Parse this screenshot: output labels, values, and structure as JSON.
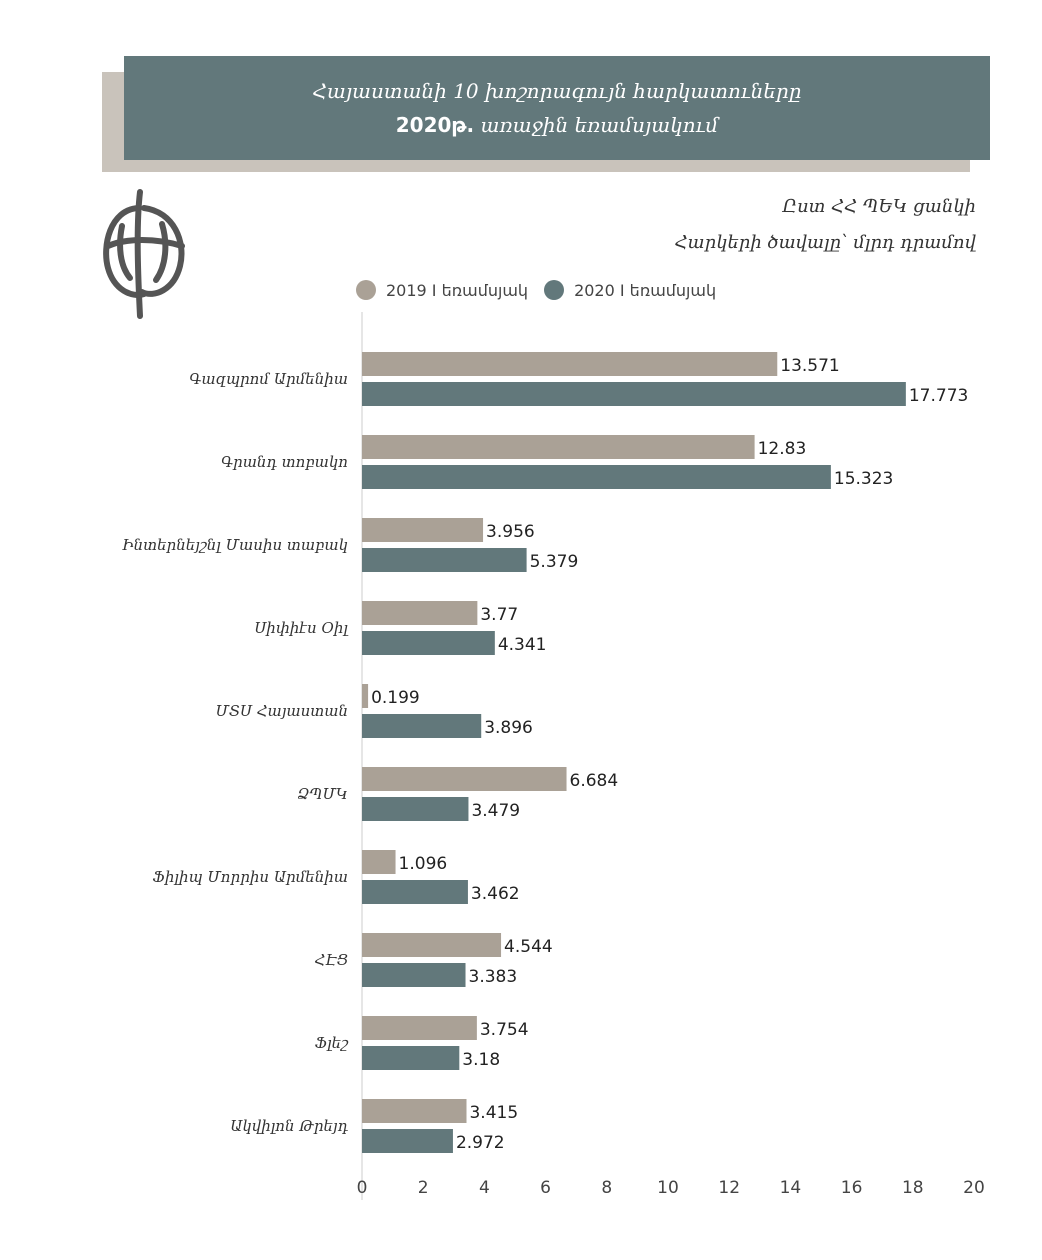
{
  "header": {
    "title_line1": "Հայաստանի 10 խոշորագույն հարկատուները",
    "title_line2_bold": "2020թ.",
    "title_line2_rest": "առաջին եռամսյակում",
    "source": "Ըստ ՀՀ ՊԵԿ ցանկի",
    "unit": "Հարկերի ծավալը՝ մլրդ դրամով"
  },
  "colors": {
    "header_bg": "#62787b",
    "header_shadow": "#c9c3bb",
    "series_2019": "#aaa196",
    "series_2020": "#62787b"
  },
  "logo": {
    "icon": "circular-emblem-icon"
  },
  "chart_data": {
    "type": "bar",
    "orientation": "horizontal",
    "categories": [
      "Գազպրոմ Արմենիա",
      "Գրանդ տոբակո",
      "Ինտերնեյշնլ Մասիս տաբակ",
      "Սիփիէս Օիլ",
      "ՄՏՍ Հայաստան",
      "ՁՊՄԿ",
      "Ֆիլիպ Մորրիս Արմենիա",
      "ՀԷՑ",
      "Ֆլեշ",
      "Ակվիլոն Թրեյդ"
    ],
    "series": [
      {
        "name": "2019 I եռամսյակ",
        "values": [
          13.571,
          12.83,
          3.956,
          3.77,
          0.199,
          6.684,
          1.096,
          4.544,
          3.754,
          3.415
        ]
      },
      {
        "name": "2020 I եռամսյակ",
        "values": [
          17.773,
          15.323,
          5.379,
          4.341,
          3.896,
          3.479,
          3.462,
          3.383,
          3.18,
          2.972
        ]
      }
    ],
    "xlim": [
      0,
      20
    ],
    "xticks": [
      "0",
      "2",
      "4",
      "6",
      "8",
      "10",
      "12",
      "14",
      "16",
      "18",
      "20"
    ],
    "legend_position": "top",
    "grid": false
  }
}
